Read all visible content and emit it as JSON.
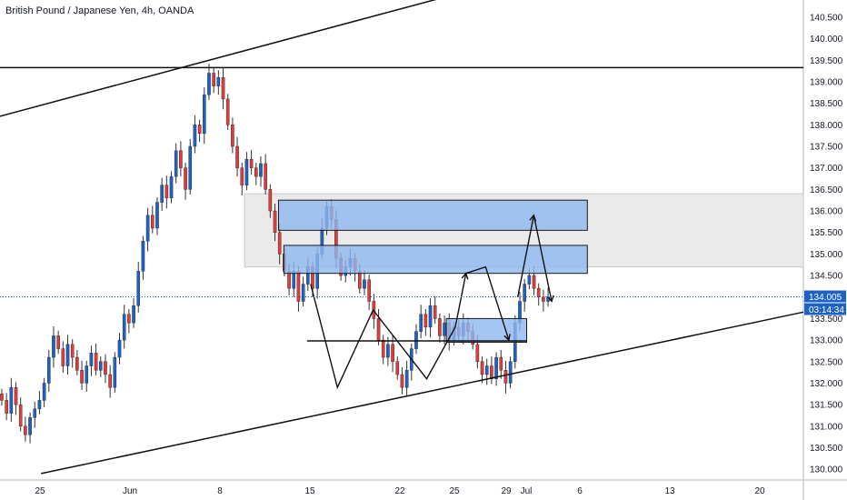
{
  "header": {
    "title": "British Pound / Japanese Yen, 4h, OANDA"
  },
  "chart_data": {
    "type": "candlestick",
    "symbol": "British Pound / Japanese Yen",
    "interval": "4h",
    "source": "OANDA",
    "ylim": [
      129.75,
      140.9
    ],
    "xlim": [
      0,
      45
    ],
    "y_ticks": [
      "140.500",
      "140.000",
      "139.500",
      "139.000",
      "138.500",
      "138.000",
      "137.500",
      "137.000",
      "136.500",
      "136.000",
      "135.500",
      "135.000",
      "134.500",
      "134.000",
      "133.500",
      "133.000",
      "132.500",
      "132.000",
      "131.500",
      "131.000",
      "130.500",
      "130.000"
    ],
    "x_ticks": [
      {
        "label": "25",
        "t": 2
      },
      {
        "label": "Jun",
        "t": 7
      },
      {
        "label": "8",
        "t": 12
      },
      {
        "label": "15",
        "t": 17
      },
      {
        "label": "22",
        "t": 22
      },
      {
        "label": "25",
        "t": 25
      },
      {
        "label": "29",
        "t": 29
      },
      {
        "label": "Jul",
        "t": 32
      },
      {
        "label": "6",
        "t": 36
      },
      {
        "label": "13",
        "t": 41
      },
      {
        "label": "20",
        "t": 46
      }
    ],
    "current_price": {
      "value": 134.005,
      "label": "134.005",
      "countdown": "03:14:34",
      "color": "#1e63c3"
    },
    "colors": {
      "up": "#1e63c3",
      "down": "#e03c3c",
      "box_fill": "#8fb8f0",
      "box_stroke": "#1a1a1a",
      "range_fill": "#dcdcdc"
    },
    "closes": [
      131.6,
      131.3,
      131.9,
      131.5,
      131.0,
      130.8,
      131.2,
      131.4,
      131.6,
      132.0,
      132.6,
      133.1,
      132.8,
      132.4,
      132.9,
      132.6,
      132.3,
      132.0,
      132.4,
      132.7,
      132.3,
      132.5,
      132.2,
      131.9,
      132.6,
      133.0,
      133.6,
      133.4,
      133.8,
      134.6,
      135.3,
      135.9,
      135.6,
      136.2,
      136.6,
      136.3,
      136.8,
      137.4,
      137.0,
      136.5,
      137.5,
      138.0,
      137.8,
      138.7,
      139.2,
      138.9,
      139.1,
      138.6,
      138.0,
      137.5,
      137.0,
      136.6,
      137.2,
      137.0,
      136.8,
      137.1,
      136.5,
      136.0,
      135.5,
      135.0,
      134.6,
      134.2,
      134.6,
      133.9,
      134.3,
      134.7,
      134.2,
      135.0,
      135.6,
      136.1,
      135.8,
      134.9,
      134.5,
      134.7,
      134.9,
      134.6,
      134.2,
      134.4,
      133.9,
      133.5,
      133.0,
      132.6,
      132.9,
      132.5,
      132.2,
      131.9,
      132.3,
      132.8,
      133.2,
      133.6,
      133.3,
      133.8,
      133.5,
      133.1,
      133.4,
      133.0,
      133.3,
      133.1,
      133.4,
      133.2,
      132.9,
      132.5,
      132.2,
      132.4,
      132.1,
      132.6,
      132.3,
      132.0,
      132.5,
      133.4,
      133.9,
      134.3,
      134.5,
      134.2,
      134.0,
      133.9,
      134.0
    ],
    "horizontal_lines": [
      139.33,
      132.98
    ],
    "boxes": [
      {
        "t0": 15.6,
        "t1": 32.9,
        "p0": 135.55,
        "p1": 136.25
      },
      {
        "t0": 15.9,
        "t1": 32.9,
        "p0": 134.55,
        "p1": 135.2
      },
      {
        "t0": 25.0,
        "t1": 29.5,
        "p0": 132.95,
        "p1": 133.5
      }
    ],
    "range_zone": {
      "t0": 13.7,
      "t1": 45.0,
      "p0": 134.7,
      "p1": 136.4
    },
    "trendlines": [
      {
        "t0": 0,
        "p0": 138.2,
        "t1": 25.2,
        "p1": 141.0
      },
      {
        "t0": 2.3,
        "p0": 129.9,
        "t1": 45.0,
        "p1": 133.65
      }
    ],
    "zigzag": [
      {
        "t": 17.4,
        "p": 134.3
      },
      {
        "t": 18.9,
        "p": 131.9
      },
      {
        "t": 20.9,
        "p": 133.7
      },
      {
        "t": 23.9,
        "p": 132.1
      },
      {
        "t": 25.5,
        "p": 133.3
      },
      {
        "t": 26.1,
        "p": 134.55
      },
      {
        "t": 27.2,
        "p": 134.7
      },
      {
        "t": 28.5,
        "p": 133.0
      }
    ],
    "projection": [
      {
        "t": 29.0,
        "p": 134.0
      },
      {
        "t": 29.9,
        "p": 135.9
      },
      {
        "t": 30.9,
        "p": 133.9
      }
    ]
  }
}
